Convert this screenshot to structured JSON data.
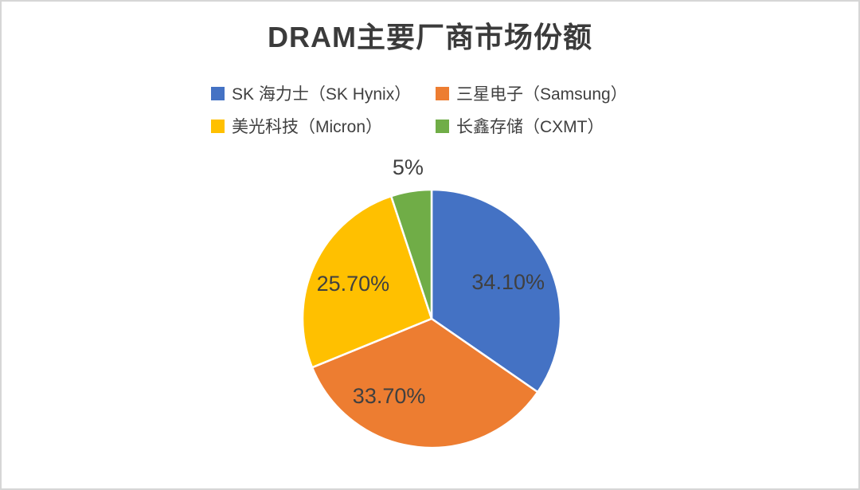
{
  "page": {
    "background_color": "#ffffff",
    "border_color": "#d6d6d6"
  },
  "title": "DRAM主要厂商市场份额",
  "legend": {
    "position": "top",
    "items": [
      {
        "label": "SK 海力士（SK Hynix）",
        "color": "#4472C4"
      },
      {
        "label": "三星电子（Samsung）",
        "color": "#ED7D31"
      },
      {
        "label": "美光科技（Micron）",
        "color": "#FFC000"
      },
      {
        "label": "长鑫存储（CXMT）",
        "color": "#70AD47"
      }
    ]
  },
  "chart_data": {
    "type": "pie",
    "title": "DRAM主要厂商市场份额",
    "categories": [
      "SK 海力士（SK Hynix）",
      "三星电子（Samsung）",
      "美光科技（Micron）",
      "长鑫存储（CXMT）"
    ],
    "values": [
      34.1,
      33.7,
      25.7,
      5
    ],
    "labels": [
      "34.10%",
      "33.70%",
      "25.70%",
      "5%"
    ],
    "colors": [
      "#4472C4",
      "#ED7D31",
      "#FFC000",
      "#70AD47"
    ],
    "start_angle_deg": 0,
    "direction": "clockwise",
    "slice_border_color": "#ffffff",
    "label_color": "#404040",
    "legend_position": "top",
    "grid": false
  }
}
